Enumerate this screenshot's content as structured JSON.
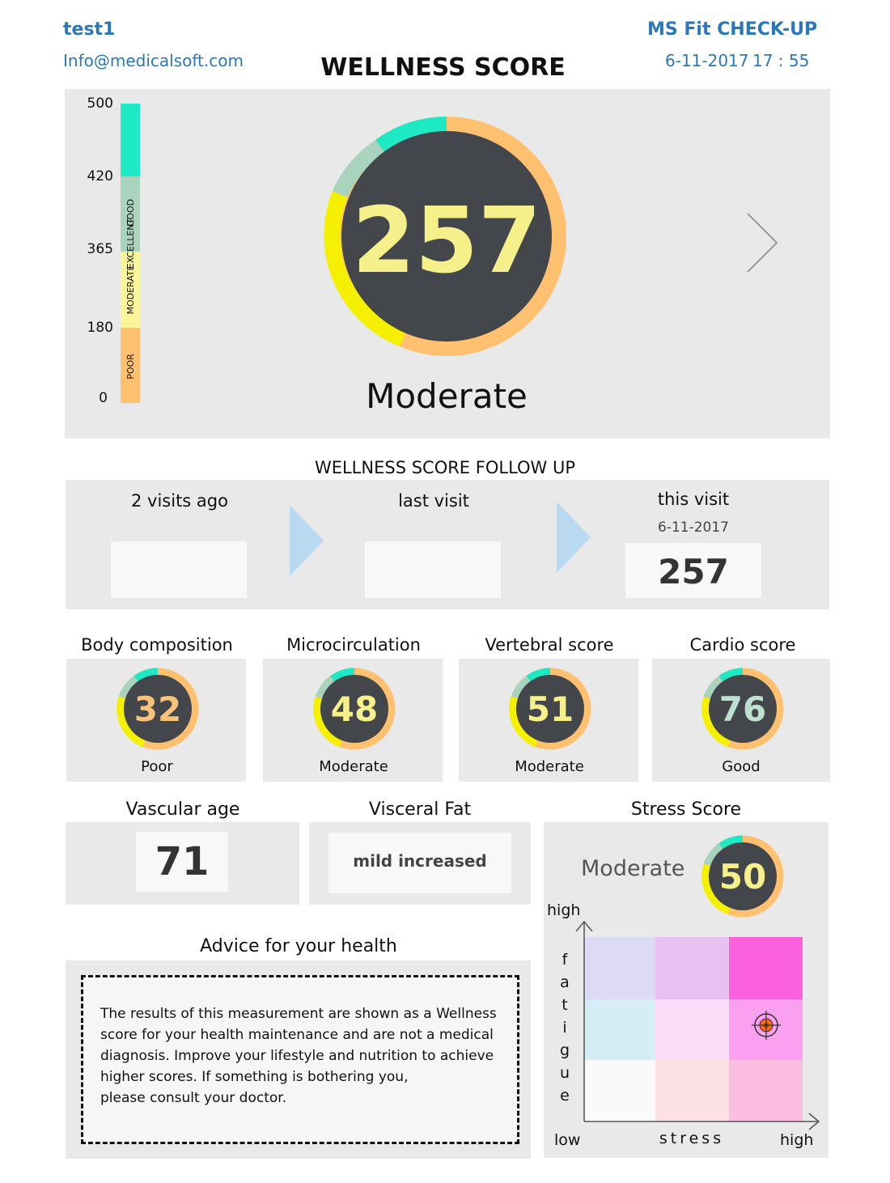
{
  "header": {
    "user": "test1",
    "email": "Info@medicalsoft.com",
    "title": "WELLNESS SCORE",
    "app_name": "MS Fit CHECK-UP",
    "date": "6-11-2017",
    "time": "17 : 55"
  },
  "wellness": {
    "score": 257,
    "score_label": "257",
    "rating": "Moderate",
    "scale_min": 0,
    "scale_max": 500,
    "scale_ticks": [
      "500",
      "420",
      "365",
      "180",
      "0"
    ],
    "bands": [
      {
        "label": "EXCELLENT",
        "from": 420,
        "to": 500,
        "color": "#1de9c5"
      },
      {
        "label": "GOOD",
        "from": 365,
        "to": 420,
        "color": "#a9d3bd"
      },
      {
        "label": "MODERATE",
        "from": 180,
        "to": 365,
        "color": "#fbf59a"
      },
      {
        "label": "POOR",
        "from": 0,
        "to": 180,
        "color": "#ffc070"
      }
    ],
    "next_icon": "chevron-right-icon"
  },
  "follow_up": {
    "title": "WELLNESS SCORE FOLLOW UP",
    "two_visits_ago": {
      "label": "2 visits ago",
      "value": ""
    },
    "last_visit": {
      "label": "last visit",
      "value": ""
    },
    "this_visit": {
      "label": "this visit",
      "date": "6-11-2017",
      "value": "257"
    },
    "arrow_icon": "play-arrow-icon",
    "arrow_color": "#b8d9f0"
  },
  "sub_scores": [
    {
      "title": "Body composition",
      "value": "32",
      "rating": "Poor",
      "value_color": "#f7c27a"
    },
    {
      "title": "Microcirculation",
      "value": "48",
      "rating": "Moderate",
      "value_color": "#f5f08a"
    },
    {
      "title": "Vertebral score",
      "value": "51",
      "rating": "Moderate",
      "value_color": "#f5f08a"
    },
    {
      "title": "Cardio score",
      "value": "76",
      "rating": "Good",
      "value_color": "#bfe0cf"
    }
  ],
  "vascular_age": {
    "title": "Vascular age",
    "value": "71"
  },
  "visceral_fat": {
    "title": "Visceral Fat",
    "value": "mild increased"
  },
  "stress": {
    "title": "Stress Score",
    "rating": "Moderate",
    "value": "50",
    "value_color": "#f5f08a",
    "matrix": {
      "y_label_high": "high",
      "y_label": "fatigue",
      "x_label_low": "low",
      "x_label": "stress",
      "x_label_high": "high",
      "cells": [
        [
          "#dcdaf5",
          "#e6c1f2",
          "#fb60dd"
        ],
        [
          "#d5eef6",
          "#fcdcf7",
          "#fb9ff0"
        ],
        [
          "#fafafa",
          "#fde0e6",
          "#fbbde1"
        ]
      ],
      "marker": {
        "stress_level": "high",
        "fatigue_level": "medium"
      },
      "marker_icon": "target-icon"
    }
  },
  "advice": {
    "title": "Advice for your health",
    "lines": [
      "The results of this measurement are shown as a Wellness",
      "score for your health maintenance and are not a medical",
      "diagnosis. Improve your lifestyle and nutrition to achieve",
      "higher scores. If something is bothering you,",
      "please consult your doctor."
    ]
  },
  "colors": {
    "dial_dark": "#43464a",
    "ring_orange": "#ffc070",
    "ring_yellow": "#f5f000",
    "ring_green": "#a9d3bd",
    "ring_cyan": "#1de9c5",
    "brand_blue": "#2a78b8",
    "panel_gray": "#e9e9e9"
  }
}
